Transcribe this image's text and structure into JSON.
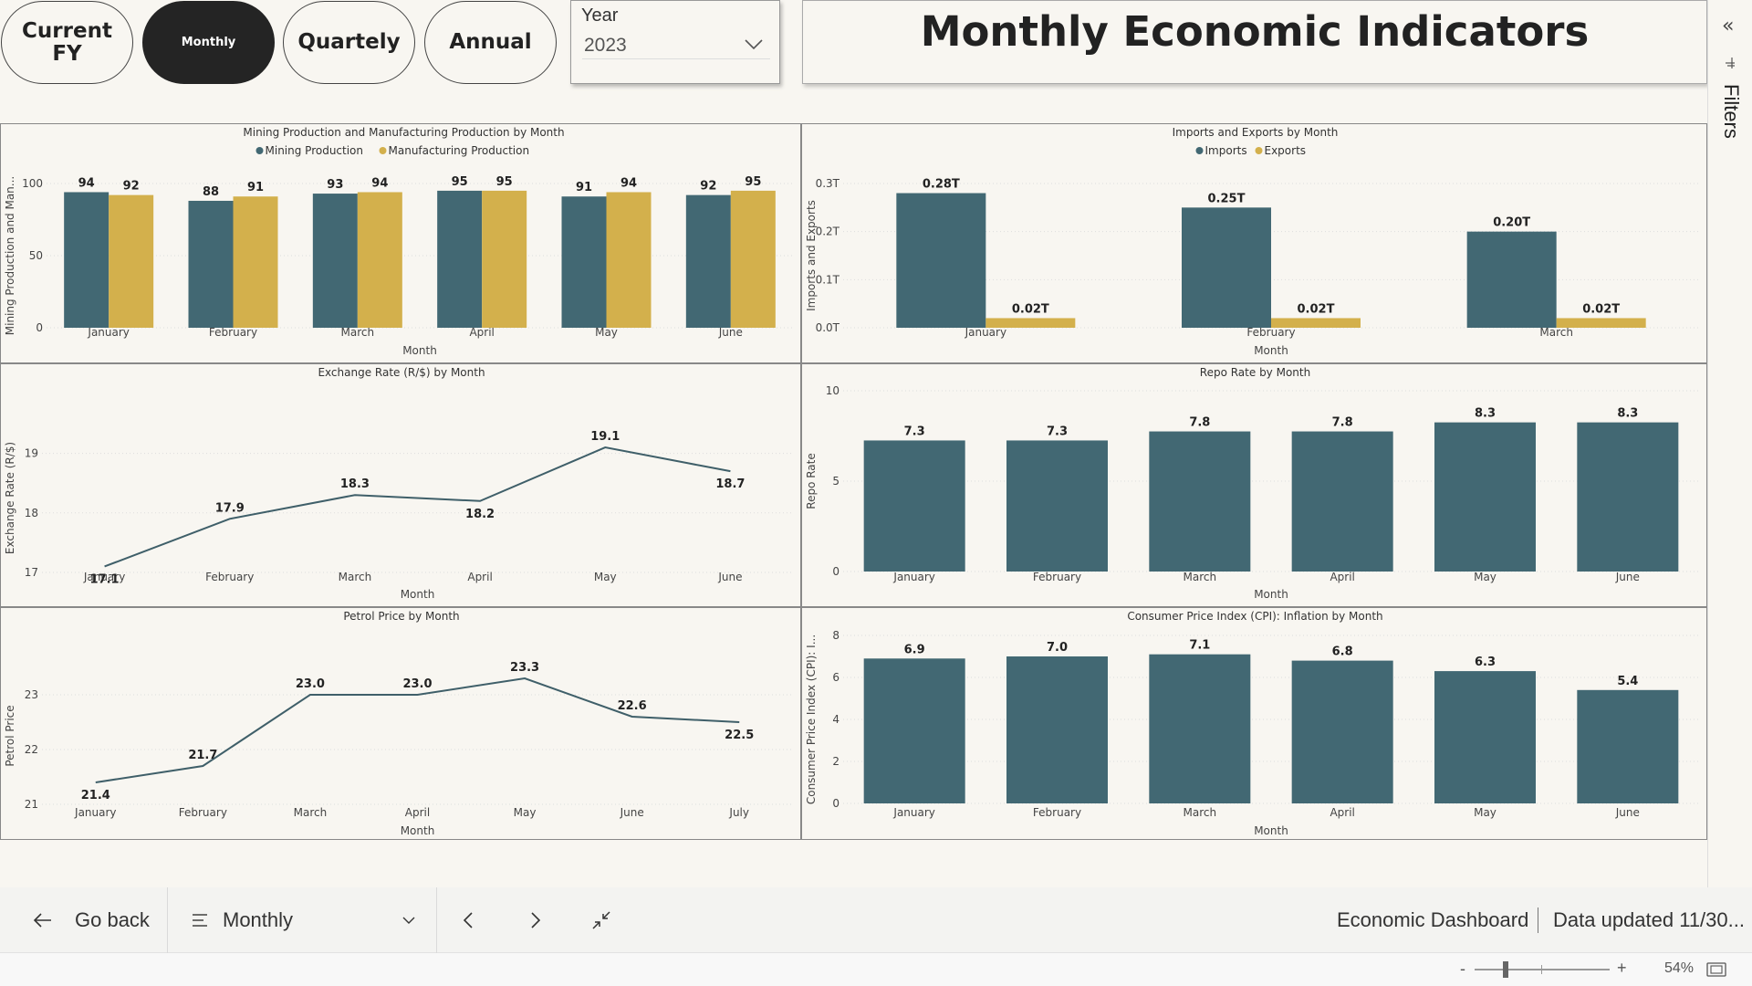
{
  "period_buttons": [
    {
      "label": "Current FY",
      "active": false
    },
    {
      "label": "Monthly",
      "active": true
    },
    {
      "label": "Quartely",
      "active": false
    },
    {
      "label": "Annual",
      "active": false
    }
  ],
  "year_slicer": {
    "label": "Year",
    "value": "2023"
  },
  "page_title": "Monthly Economic Indicators",
  "filters_pane": {
    "label": "Filters"
  },
  "colors": {
    "teal": "#426873",
    "gold": "#d3b04c",
    "line": "#3f5f69"
  },
  "charts": {
    "mining": {
      "title": "Mining Production and Manufacturing Production by Month",
      "xlabel": "Month",
      "ylabel": "Mining Production and Man...",
      "legend": [
        "Mining Production",
        "Manufacturing Production"
      ]
    },
    "trade": {
      "title": "Imports and Exports by Month",
      "xlabel": "Month",
      "ylabel": "Imports and Exports",
      "legend": [
        "Imports",
        "Exports"
      ]
    },
    "fx": {
      "title": "Exchange Rate (R/$) by Month",
      "xlabel": "Month",
      "ylabel": "Exchange Rate (R/$)"
    },
    "repo": {
      "title": "Repo Rate by Month",
      "xlabel": "Month",
      "ylabel": "Repo Rate"
    },
    "petrol": {
      "title": "Petrol Price by Month",
      "xlabel": "Month",
      "ylabel": "Petrol Price"
    },
    "cpi": {
      "title": "Consumer Price Index (CPI): Inflation by Month",
      "xlabel": "Month",
      "ylabel": "Consumer Price Index (CPI): I..."
    }
  },
  "chart_data": [
    {
      "id": "mining",
      "type": "bar",
      "title": "Mining Production and Manufacturing Production by Month",
      "categories": [
        "January",
        "February",
        "March",
        "April",
        "May",
        "June"
      ],
      "series": [
        {
          "name": "Mining Production",
          "values": [
            94,
            88,
            93,
            95,
            91,
            92
          ],
          "labels": [
            "94",
            "88",
            "93",
            "95",
            "91",
            "92"
          ]
        },
        {
          "name": "Manufacturing Production",
          "values": [
            92,
            91,
            94,
            95,
            94,
            95
          ],
          "labels": [
            "92",
            "91",
            "94",
            "95",
            "94",
            "95"
          ]
        }
      ],
      "yticks": [
        0,
        50,
        100
      ],
      "ytick_labels": [
        "0",
        "50",
        "100"
      ],
      "ylim": [
        0,
        100
      ],
      "xlabel": "Month",
      "ylabel": "Mining Production and Man...",
      "legend": "top-center",
      "grid": true
    },
    {
      "id": "trade",
      "type": "bar",
      "title": "Imports and Exports by Month",
      "categories": [
        "January",
        "February",
        "March"
      ],
      "series": [
        {
          "name": "Imports",
          "values": [
            0.28,
            0.25,
            0.2
          ],
          "labels": [
            "0.28T",
            "0.25T",
            "0.20T"
          ]
        },
        {
          "name": "Exports",
          "values": [
            0.02,
            0.02,
            0.02
          ],
          "labels": [
            "0.02T",
            "0.02T",
            "0.02T"
          ]
        }
      ],
      "yticks": [
        0,
        0.1,
        0.2,
        0.3
      ],
      "ytick_labels": [
        "0.0T",
        "0.1T",
        "0.2T",
        "0.3T"
      ],
      "ylim": [
        0,
        0.3
      ],
      "xlabel": "Month",
      "ylabel": "Imports and Exports",
      "legend": "top-center",
      "grid": true
    },
    {
      "id": "fx",
      "type": "line",
      "title": "Exchange Rate (R/$) by Month",
      "categories": [
        "January",
        "February",
        "March",
        "April",
        "May",
        "June"
      ],
      "series": [
        {
          "name": "Exchange Rate (R/$)",
          "values": [
            17.1,
            17.9,
            18.3,
            18.2,
            19.1,
            18.7
          ],
          "labels": [
            "17.1",
            "17.9",
            "18.3",
            "18.2",
            "19.1",
            "18.7"
          ]
        }
      ],
      "yticks": [
        17,
        18,
        19
      ],
      "ytick_labels": [
        "17",
        "18",
        "19"
      ],
      "ylim": [
        17,
        19.5
      ],
      "xlabel": "Month",
      "ylabel": "Exchange Rate (R/$)",
      "grid": true
    },
    {
      "id": "repo",
      "type": "bar",
      "title": "Repo Rate by Month",
      "categories": [
        "January",
        "February",
        "March",
        "April",
        "May",
        "June"
      ],
      "series": [
        {
          "name": "Repo Rate",
          "values": [
            7.25,
            7.25,
            7.75,
            7.75,
            8.25,
            8.25
          ],
          "labels": [
            "7.3",
            "7.3",
            "7.8",
            "7.8",
            "8.3",
            "8.3"
          ]
        }
      ],
      "yticks": [
        0,
        5,
        10
      ],
      "ytick_labels": [
        "0",
        "5",
        "10"
      ],
      "ylim": [
        0,
        10
      ],
      "xlabel": "Month",
      "ylabel": "Repo Rate",
      "grid": true
    },
    {
      "id": "petrol",
      "type": "line",
      "title": "Petrol Price by Month",
      "categories": [
        "January",
        "February",
        "March",
        "April",
        "May",
        "June",
        "July"
      ],
      "series": [
        {
          "name": "Petrol Price",
          "values": [
            21.4,
            21.7,
            23.0,
            23.0,
            23.3,
            22.6,
            22.5
          ],
          "labels": [
            "21.4",
            "21.7",
            "23.0",
            "23.0",
            "23.3",
            "22.6",
            "22.5"
          ]
        }
      ],
      "yticks": [
        21,
        22,
        23
      ],
      "ytick_labels": [
        "21",
        "22",
        "23"
      ],
      "ylim": [
        21,
        23.5
      ],
      "xlabel": "Month",
      "ylabel": "Petrol Price",
      "grid": true
    },
    {
      "id": "cpi",
      "type": "bar",
      "title": "Consumer Price Index (CPI): Inflation by Month",
      "categories": [
        "January",
        "February",
        "March",
        "April",
        "May",
        "June"
      ],
      "series": [
        {
          "name": "CPI Inflation",
          "values": [
            6.9,
            7.0,
            7.1,
            6.8,
            6.3,
            5.4
          ],
          "labels": [
            "6.9",
            "7.0",
            "7.1",
            "6.8",
            "6.3",
            "5.4"
          ]
        }
      ],
      "yticks": [
        0,
        2,
        4,
        6,
        8
      ],
      "ytick_labels": [
        "0",
        "2",
        "4",
        "6",
        "8"
      ],
      "ylim": [
        0,
        8
      ],
      "xlabel": "Month",
      "ylabel": "Consumer Price Index (CPI): I...",
      "grid": true
    }
  ],
  "bottom_bar": {
    "go_back": "Go back",
    "page_select": "Monthly",
    "report_name": "Economic Dashboard",
    "data_updated": "Data updated 11/30..."
  },
  "status_bar": {
    "zoom_minus": "-",
    "zoom_plus": "+",
    "zoom": "54%",
    "zoom_level": 0.54
  }
}
